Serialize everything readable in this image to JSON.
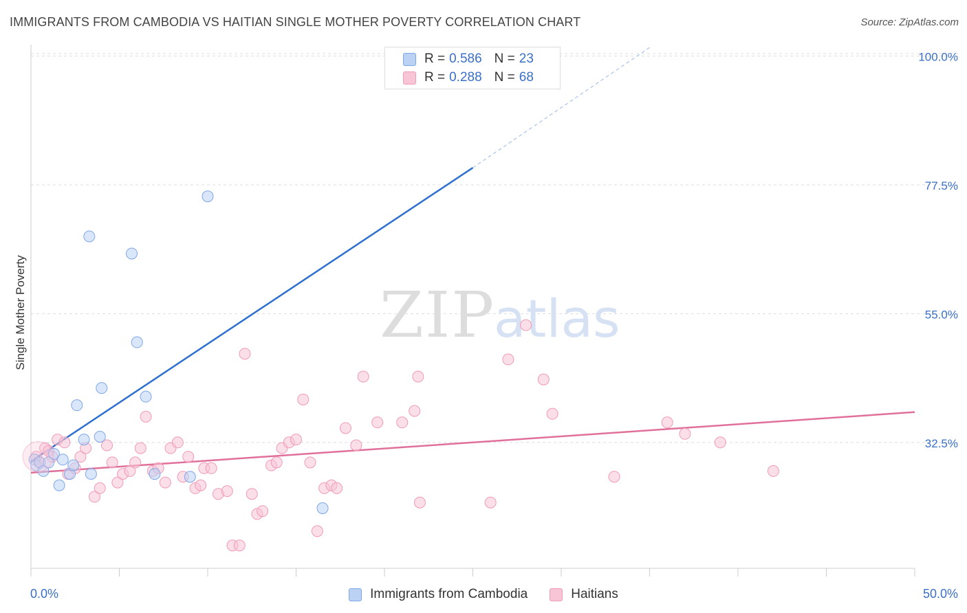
{
  "title": "IMMIGRANTS FROM CAMBODIA VS HAITIAN SINGLE MOTHER POVERTY CORRELATION CHART",
  "source": "Source: ZipAtlas.com",
  "watermark": {
    "zip": "ZIP",
    "atlas": "atlas"
  },
  "legend": {
    "r_label": "R =",
    "n_label": "N =",
    "series": [
      {
        "r": "0.586",
        "n": "23"
      },
      {
        "r": "0.288",
        "n": "68"
      }
    ]
  },
  "chart_data": {
    "type": "scatter",
    "title": "IMMIGRANTS FROM CAMBODIA VS HAITIAN SINGLE MOTHER POVERTY CORRELATION CHART",
    "xlabel": "",
    "ylabel": "Single Mother Poverty",
    "xlim": [
      0,
      50
    ],
    "ylim": [
      10.5,
      102
    ],
    "x_tick_labels": [
      "0.0%",
      "50.0%"
    ],
    "y_ticks": [
      32.5,
      55.0,
      77.5,
      100.0
    ],
    "y_tick_labels": [
      "32.5%",
      "55.0%",
      "77.5%",
      "100.0%"
    ],
    "grid": true,
    "legend_position": "top-center",
    "series": [
      {
        "name": "Immigrants from Cambodia",
        "color": "#7fa6e6",
        "fill": "#bcd2f5",
        "line_color": "#2c6fcf",
        "trend": {
          "x0": 0,
          "y0": 29.2,
          "x1": 25,
          "y1": 80.5,
          "dash_x_end": 35,
          "dash_y_end": 101.5
        },
        "points": [
          [
            0.2,
            29.5
          ],
          [
            0.3,
            28.5
          ],
          [
            0.5,
            29.0
          ],
          [
            0.7,
            27.5
          ],
          [
            1.0,
            29.0
          ],
          [
            1.3,
            30.5
          ],
          [
            1.6,
            25.0
          ],
          [
            1.8,
            29.5
          ],
          [
            2.2,
            27.0
          ],
          [
            2.4,
            28.5
          ],
          [
            2.6,
            39.0
          ],
          [
            3.0,
            33.0
          ],
          [
            3.3,
            68.5
          ],
          [
            3.4,
            27.0
          ],
          [
            3.9,
            33.5
          ],
          [
            4.0,
            42.0
          ],
          [
            5.7,
            65.5
          ],
          [
            6.0,
            50.0
          ],
          [
            6.5,
            40.5
          ],
          [
            7.0,
            27.0
          ],
          [
            9.0,
            26.5
          ],
          [
            10.0,
            75.5
          ],
          [
            16.5,
            21.0
          ]
        ]
      },
      {
        "name": "Haitians",
        "color": "#ef9ab6",
        "fill": "#f7c5d6",
        "line_color": "#e0709a",
        "trend": {
          "x0": 0,
          "y0": 27.2,
          "x1": 50,
          "y1": 37.8
        },
        "points": [
          [
            0.3,
            30.0
          ],
          [
            0.5,
            29.0
          ],
          [
            0.8,
            31.5
          ],
          [
            1.0,
            31.0
          ],
          [
            1.2,
            30.0
          ],
          [
            1.5,
            33.0
          ],
          [
            1.9,
            32.5
          ],
          [
            2.1,
            27.0
          ],
          [
            2.5,
            28.0
          ],
          [
            2.8,
            30.0
          ],
          [
            3.1,
            31.5
          ],
          [
            3.6,
            23.0
          ],
          [
            3.9,
            24.5
          ],
          [
            4.3,
            32.0
          ],
          [
            4.6,
            29.0
          ],
          [
            4.9,
            25.5
          ],
          [
            5.2,
            27.0
          ],
          [
            5.6,
            27.5
          ],
          [
            5.9,
            29.0
          ],
          [
            6.2,
            31.5
          ],
          [
            6.5,
            37.0
          ],
          [
            6.9,
            27.5
          ],
          [
            7.2,
            28.0
          ],
          [
            7.6,
            25.5
          ],
          [
            7.9,
            31.5
          ],
          [
            8.3,
            32.5
          ],
          [
            8.6,
            26.5
          ],
          [
            8.9,
            30.0
          ],
          [
            9.3,
            24.5
          ],
          [
            9.6,
            25.0
          ],
          [
            9.8,
            28.0
          ],
          [
            10.2,
            28.0
          ],
          [
            10.6,
            23.5
          ],
          [
            11.1,
            24.0
          ],
          [
            11.4,
            14.5
          ],
          [
            11.8,
            14.5
          ],
          [
            12.1,
            48.0
          ],
          [
            12.5,
            23.5
          ],
          [
            12.8,
            20.0
          ],
          [
            13.1,
            20.5
          ],
          [
            13.6,
            28.5
          ],
          [
            13.9,
            29.0
          ],
          [
            14.2,
            31.5
          ],
          [
            14.6,
            32.5
          ],
          [
            15.0,
            33.0
          ],
          [
            15.4,
            40.0
          ],
          [
            15.8,
            29.0
          ],
          [
            16.2,
            17.0
          ],
          [
            16.6,
            24.5
          ],
          [
            17.0,
            25.0
          ],
          [
            17.3,
            24.5
          ],
          [
            17.8,
            35.0
          ],
          [
            18.4,
            32.0
          ],
          [
            18.8,
            44.0
          ],
          [
            19.6,
            36.0
          ],
          [
            21.0,
            36.0
          ],
          [
            21.7,
            38.0
          ],
          [
            21.9,
            44.0
          ],
          [
            22.0,
            22.0
          ],
          [
            26.0,
            22.0
          ],
          [
            27.0,
            47.0
          ],
          [
            28.0,
            53.0
          ],
          [
            29.0,
            43.5
          ],
          [
            29.5,
            37.5
          ],
          [
            33.0,
            26.5
          ],
          [
            36.0,
            36.0
          ],
          [
            37.0,
            34.0
          ],
          [
            39.0,
            32.5
          ]
        ]
      }
    ],
    "extra_points": [
      {
        "series": 1,
        "x": 42.0,
        "y": 27.5
      }
    ]
  }
}
